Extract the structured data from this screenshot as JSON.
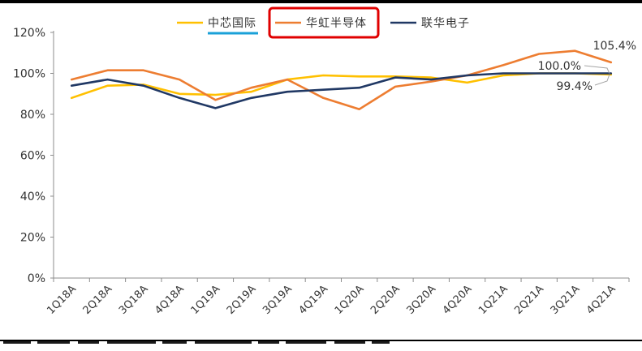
{
  "chart_data": {
    "type": "line",
    "title": "",
    "xlabel": "",
    "ylabel": "",
    "categories": [
      "1Q18A",
      "2Q18A",
      "3Q18A",
      "4Q18A",
      "1Q19A",
      "2Q19A",
      "3Q19A",
      "4Q19A",
      "1Q20A",
      "2Q20A",
      "3Q20A",
      "4Q20A",
      "1Q21A",
      "2Q21A",
      "3Q21A",
      "4Q21A"
    ],
    "ylim": [
      0,
      120
    ],
    "yticks": [
      0,
      20,
      40,
      60,
      80,
      100,
      120
    ],
    "ytick_labels": [
      "0%",
      "20%",
      "40%",
      "60%",
      "80%",
      "100%",
      "120%"
    ],
    "grid": false,
    "legend_position": "top-center",
    "series": [
      {
        "name": "中芯国际",
        "color": "#FFC000",
        "values": [
          88,
          94,
          94.5,
          90,
          89.5,
          91,
          97,
          99,
          98.5,
          98.5,
          98,
          95.5,
          99,
          100,
          100,
          99.4
        ]
      },
      {
        "name": "华虹半导体",
        "color": "#ED7D31",
        "values": [
          97,
          101.5,
          101.5,
          97,
          87,
          93,
          97,
          88,
          82.5,
          93.5,
          96,
          99,
          104,
          109.5,
          111,
          105.4
        ]
      },
      {
        "name": "联华电子",
        "color": "#203864",
        "values": [
          94,
          97,
          94,
          88,
          83,
          88,
          91,
          92,
          93,
          98,
          97,
          99,
          100,
          100,
          100,
          100
        ]
      }
    ],
    "annotations": [
      {
        "text": "105.4%",
        "series": "华虹半导体",
        "x": "4Q21A",
        "y": 105.4
      },
      {
        "text": "100.0%",
        "series": "联华电子",
        "x": "4Q21A",
        "y": 100.0
      },
      {
        "text": "99.4%",
        "series": "中芯国际",
        "x": "4Q21A",
        "y": 99.4
      }
    ],
    "highlight": {
      "legend_item": "华虹半导体",
      "box_color": "#E00000",
      "underline_item": "中芯国际",
      "underline_color": "#1AA0D8"
    }
  }
}
